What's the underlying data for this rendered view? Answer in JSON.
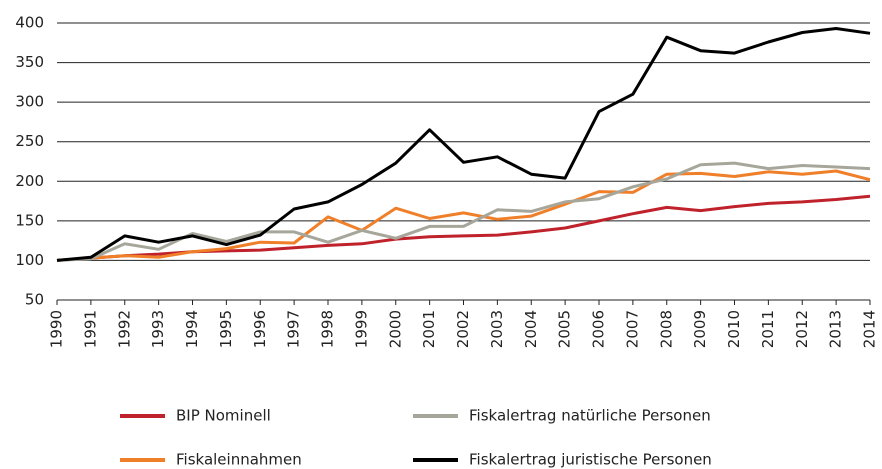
{
  "chart_data": {
    "type": "line",
    "categories": [
      "1990",
      "1991",
      "1992",
      "1993",
      "1994",
      "1995",
      "1996",
      "1997",
      "1998",
      "1999",
      "2000",
      "2001",
      "2002",
      "2003",
      "2004",
      "2005",
      "2006",
      "2007",
      "2008",
      "2009",
      "2010",
      "2011",
      "2012",
      "2013",
      "2014"
    ],
    "series": [
      {
        "name": "BIP Nominell",
        "color": "#c0222c",
        "values": [
          100,
          103,
          106,
          108,
          111,
          112,
          113,
          116,
          119,
          121,
          127,
          130,
          131,
          132,
          136,
          141,
          150,
          159,
          167,
          163,
          168,
          172,
          174,
          177,
          181
        ]
      },
      {
        "name": "Fiskaleinnahmen",
        "color": "#f07f2a",
        "values": [
          100,
          103,
          106,
          104,
          111,
          115,
          123,
          122,
          155,
          138,
          166,
          153,
          160,
          152,
          156,
          171,
          187,
          186,
          209,
          210,
          206,
          212,
          209,
          213,
          202
        ]
      },
      {
        "name": "Fiskalertrag natürliche Personen",
        "color": "#a6a69b",
        "values": [
          100,
          102,
          121,
          114,
          134,
          124,
          136,
          136,
          123,
          138,
          128,
          143,
          143,
          164,
          162,
          174,
          178,
          193,
          203,
          221,
          223,
          216,
          220,
          218,
          216
        ]
      },
      {
        "name": "Fiskalertrag juristische Personen",
        "color": "#000000",
        "values": [
          100,
          104,
          131,
          123,
          131,
          120,
          132,
          165,
          174,
          196,
          223,
          265,
          224,
          231,
          209,
          204,
          288,
          310,
          382,
          365,
          362,
          376,
          388,
          393,
          387
        ]
      }
    ],
    "ylim": [
      50,
      400
    ],
    "yticks": [
      50,
      100,
      150,
      200,
      250,
      300,
      350,
      400
    ],
    "grid": true
  }
}
